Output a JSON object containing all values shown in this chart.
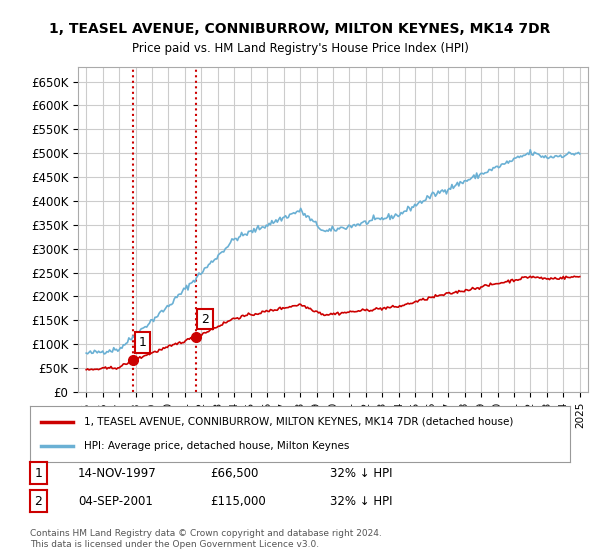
{
  "title_line1": "1, TEASEL AVENUE, CONNIBURROW, MILTON KEYNES, MK14 7DR",
  "title_line2": "Price paid vs. HM Land Registry's House Price Index (HPI)",
  "xlabel": "",
  "ylabel": "",
  "ylim": [
    0,
    680000
  ],
  "yticks": [
    0,
    50000,
    100000,
    150000,
    200000,
    250000,
    300000,
    350000,
    400000,
    450000,
    500000,
    550000,
    600000,
    650000
  ],
  "ytick_labels": [
    "£0",
    "£50K",
    "£100K",
    "£150K",
    "£200K",
    "£250K",
    "£300K",
    "£350K",
    "£400K",
    "£450K",
    "£500K",
    "£550K",
    "£600K",
    "£650K"
  ],
  "sale1_date": 1997.87,
  "sale1_price": 66500,
  "sale1_label": "1",
  "sale2_date": 2001.67,
  "sale2_price": 115000,
  "sale2_label": "2",
  "hpi_color": "#6ab0d4",
  "price_color": "#cc0000",
  "dot_color": "#cc0000",
  "vline_color": "#cc0000",
  "background_color": "#ffffff",
  "grid_color": "#cccccc",
  "legend_line1": "1, TEASEL AVENUE, CONNIBURROW, MILTON KEYNES, MK14 7DR (detached house)",
  "legend_line2": "HPI: Average price, detached house, Milton Keynes",
  "table_row1": [
    "1",
    "14-NOV-1997",
    "£66,500",
    "32% ↓ HPI"
  ],
  "table_row2": [
    "2",
    "04-SEP-2001",
    "£115,000",
    "32% ↓ HPI"
  ],
  "footnote": "Contains HM Land Registry data © Crown copyright and database right 2024.\nThis data is licensed under the Open Government Licence v3.0.",
  "xlim_start": 1994.5,
  "xlim_end": 2025.5
}
